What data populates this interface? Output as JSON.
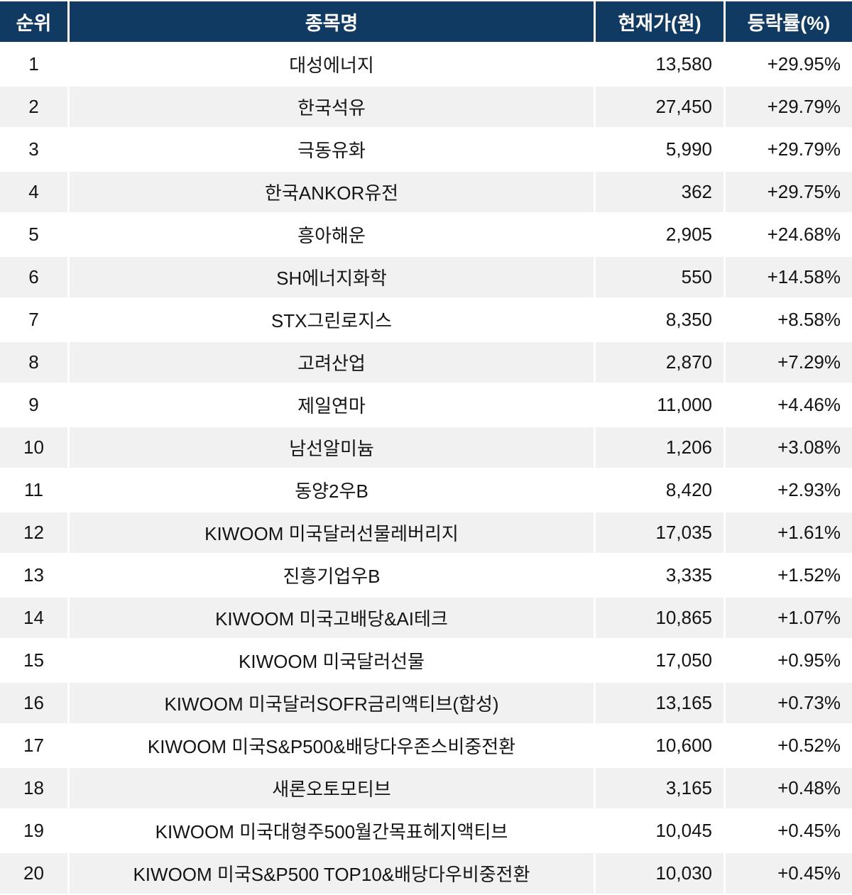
{
  "colors": {
    "header_bg": "#113A63",
    "header_text": "#ffffff",
    "row_bg": "#ffffff",
    "row_alt_bg": "#F1F1F1",
    "text": "#141414"
  },
  "chart_data": {
    "type": "table",
    "title": "",
    "columns": [
      "순위",
      "종목명",
      "현재가(원)",
      "등락률(%)"
    ],
    "rows": [
      [
        "1",
        "대성에너지",
        "13,580",
        "+29.95%"
      ],
      [
        "2",
        "한국석유",
        "27,450",
        "+29.79%"
      ],
      [
        "3",
        "극동유화",
        "5,990",
        "+29.79%"
      ],
      [
        "4",
        "한국ANKOR유전",
        "362",
        "+29.75%"
      ],
      [
        "5",
        "흥아해운",
        "2,905",
        "+24.68%"
      ],
      [
        "6",
        "SH에너지화학",
        "550",
        "+14.58%"
      ],
      [
        "7",
        "STX그린로지스",
        "8,350",
        "+8.58%"
      ],
      [
        "8",
        "고려산업",
        "2,870",
        "+7.29%"
      ],
      [
        "9",
        "제일연마",
        "11,000",
        "+4.46%"
      ],
      [
        "10",
        "남선알미늄",
        "1,206",
        "+3.08%"
      ],
      [
        "11",
        "동양2우B",
        "8,420",
        "+2.93%"
      ],
      [
        "12",
        "KIWOOM 미국달러선물레버리지",
        "17,035",
        "+1.61%"
      ],
      [
        "13",
        "진흥기업우B",
        "3,335",
        "+1.52%"
      ],
      [
        "14",
        "KIWOOM 미국고배당&AI테크",
        "10,865",
        "+1.07%"
      ],
      [
        "15",
        "KIWOOM 미국달러선물",
        "17,050",
        "+0.95%"
      ],
      [
        "16",
        "KIWOOM 미국달러SOFR금리액티브(합성)",
        "13,165",
        "+0.73%"
      ],
      [
        "17",
        "KIWOOM 미국S&P500&배당다우존스비중전환",
        "10,600",
        "+0.52%"
      ],
      [
        "18",
        "새론오토모티브",
        "3,165",
        "+0.48%"
      ],
      [
        "19",
        "KIWOOM 미국대형주500월간목표헤지액티브",
        "10,045",
        "+0.45%"
      ],
      [
        "20",
        "KIWOOM 미국S&P500 TOP10&배당다우비중전환",
        "10,030",
        "+0.45%"
      ]
    ]
  }
}
